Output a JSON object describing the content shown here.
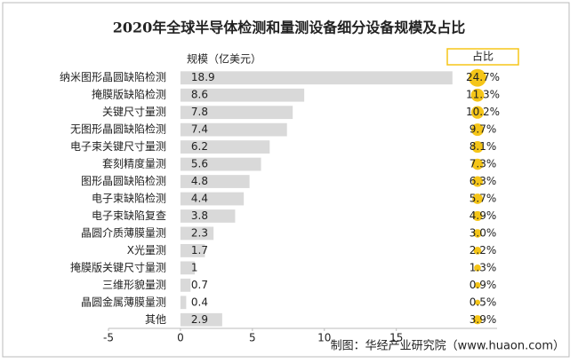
{
  "chart_data": {
    "type": "bar",
    "title": "2020年全球半导体检测和量测设备细分设备规模及占比",
    "categories": [
      "纳米图形晶圆缺陷检测",
      "掩膜版缺陷检测",
      "关键尺寸量测",
      "无图形晶圆缺陷检测",
      "电子束关键尺寸量测",
      "套刻精度量测",
      "图形晶圆缺陷检测",
      "电子束缺陷检测",
      "电子束缺陷复查",
      "晶圆介质薄膜量测",
      "X光量测",
      "掩膜版关键尺寸量测",
      "三维形貌量测",
      "晶圆金属薄膜量测",
      "其他"
    ],
    "series": [
      {
        "name": "规模（亿美元）",
        "color": "#d9d9d9",
        "values": [
          18.9,
          8.6,
          7.8,
          7.4,
          6.2,
          5.6,
          4.8,
          4.4,
          3.8,
          2.3,
          1.7,
          1,
          0.7,
          0.4,
          2.9
        ]
      },
      {
        "name": "占比",
        "color": "#f5c518",
        "values": [
          24.7,
          11.3,
          10.2,
          9.7,
          8.1,
          7.3,
          6.3,
          5.7,
          4.9,
          3.0,
          2.2,
          1.3,
          0.9,
          0.5,
          3.9
        ],
        "value_labels": [
          "24.7%",
          "11.3%",
          "10.2%",
          "9.7%",
          "8.1%",
          "7.3%",
          "6.3%",
          "5.7%",
          "4.9%",
          "3.0%",
          "2.2%",
          "1.3%",
          "0.9%",
          "0.5%",
          "3.9%"
        ]
      }
    ],
    "xlim": [
      -5,
      22
    ],
    "xticks": [
      -5,
      0,
      5,
      10,
      15
    ],
    "source": "制图：华经产业研究院（www.huaon.com）"
  }
}
